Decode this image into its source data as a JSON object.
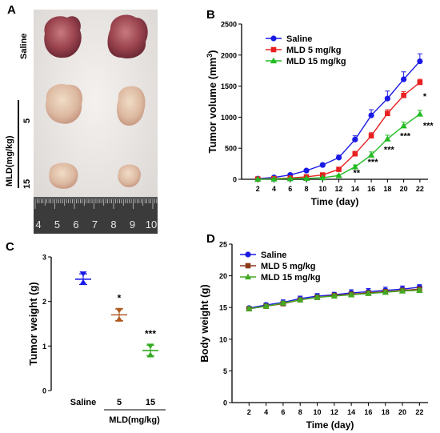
{
  "panels": {
    "A": {
      "letter": "A",
      "row_labels": {
        "saline": "Saline",
        "mld": "MLD(mg/kg)",
        "dose5": "5",
        "dose15": "15"
      },
      "ruler_numbers": [
        "4",
        "5",
        "6",
        "7",
        "8",
        "9",
        "10"
      ]
    },
    "B": {
      "letter": "B"
    },
    "C": {
      "letter": "C"
    },
    "D": {
      "letter": "D"
    }
  },
  "chart_data": [
    {
      "id": "B",
      "type": "line",
      "ylabel_main": "Tumor volume (mm",
      "ylabel_sup": "3",
      "ylabel_end": ")",
      "xlabel": "Time (day)",
      "x": [
        2,
        4,
        6,
        8,
        10,
        12,
        14,
        16,
        18,
        20,
        22
      ],
      "xlim": [
        0,
        23
      ],
      "ylim": [
        0,
        2500
      ],
      "yticks": [
        0,
        500,
        1000,
        1500,
        2000,
        2500
      ],
      "legend_position": "top-left",
      "series": [
        {
          "name": "Saline",
          "color": "#1a1ae6",
          "marker": "circle",
          "values": [
            10,
            30,
            70,
            140,
            230,
            350,
            640,
            1030,
            1300,
            1610,
            1900
          ],
          "errors": [
            5,
            10,
            15,
            20,
            25,
            40,
            60,
            90,
            120,
            120,
            120
          ]
        },
        {
          "name": "MLD 5 mg/kg",
          "color": "#e82020",
          "marker": "square",
          "values": [
            5,
            10,
            20,
            40,
            70,
            160,
            410,
            700,
            1060,
            1350,
            1560
          ],
          "errors": [
            3,
            5,
            8,
            10,
            15,
            25,
            40,
            50,
            60,
            60,
            50
          ]
        },
        {
          "name": "MLD 15 mg/kg",
          "color": "#22bb22",
          "marker": "triangle",
          "values": [
            3,
            5,
            10,
            15,
            25,
            60,
            200,
            390,
            650,
            860,
            1050
          ],
          "errors": [
            2,
            3,
            5,
            5,
            8,
            15,
            30,
            50,
            60,
            60,
            60
          ]
        }
      ],
      "annotations": [
        {
          "x": 14,
          "y": 60,
          "text": "**"
        },
        {
          "x": 16,
          "y": 230,
          "text": "***"
        },
        {
          "x": 18,
          "y": 430,
          "text": "***"
        },
        {
          "x": 20,
          "y": 650,
          "text": "***"
        },
        {
          "x": 22,
          "y": 1290,
          "text": "*"
        },
        {
          "x": 22,
          "y": 820,
          "text": "***"
        }
      ]
    },
    {
      "id": "C",
      "type": "scatter",
      "ylabel": "Tumor weight (g)",
      "categories": [
        "Saline",
        "5",
        "15"
      ],
      "category_group_label": "MLD(mg/kg)",
      "ylim": [
        0,
        3
      ],
      "yticks": [
        0,
        1,
        2,
        3
      ],
      "series": [
        {
          "category": "Saline",
          "color": "#1a1ae6",
          "points": [
            2.62,
            2.43
          ],
          "mean": 2.5,
          "error": 0.12
        },
        {
          "category": "5",
          "color": "#b05a20",
          "points": [
            1.8,
            1.6
          ],
          "mean": 1.7,
          "error": 0.13
        },
        {
          "category": "15",
          "color": "#33aa22",
          "points": [
            1.0,
            0.8
          ],
          "mean": 0.9,
          "error": 0.12
        }
      ],
      "annotations": [
        {
          "category": "5",
          "y": 2.0,
          "text": "*"
        },
        {
          "category": "15",
          "y": 1.2,
          "text": "***"
        }
      ]
    },
    {
      "id": "D",
      "type": "line",
      "ylabel": "Body weight (g)",
      "xlabel": "Time (day)",
      "x": [
        2,
        4,
        6,
        8,
        10,
        12,
        14,
        16,
        18,
        20,
        22
      ],
      "xlim": [
        0,
        23
      ],
      "ylim": [
        0,
        25
      ],
      "yticks": [
        0,
        5,
        10,
        15,
        20,
        25
      ],
      "legend_position": "top-left",
      "series": [
        {
          "name": "Saline",
          "color": "#1a1ae6",
          "marker": "circle",
          "values": [
            14.9,
            15.4,
            15.8,
            16.4,
            16.8,
            17.0,
            17.3,
            17.5,
            17.7,
            17.9,
            18.2
          ],
          "errors": [
            0.3,
            0.3,
            0.4,
            0.4,
            0.4,
            0.4,
            0.5,
            0.5,
            0.5,
            0.5,
            0.4
          ]
        },
        {
          "name": "MLD 5 mg/kg",
          "color": "#8b3a1a",
          "marker": "square",
          "values": [
            14.8,
            15.2,
            15.6,
            16.2,
            16.6,
            16.9,
            17.1,
            17.3,
            17.5,
            17.7,
            17.9
          ],
          "errors": [
            0.3,
            0.3,
            0.3,
            0.3,
            0.3,
            0.3,
            0.3,
            0.3,
            0.3,
            0.3,
            0.3
          ]
        },
        {
          "name": "MLD 15 mg/kg",
          "color": "#44aa22",
          "marker": "triangle",
          "values": [
            14.8,
            15.2,
            15.7,
            16.2,
            16.6,
            16.8,
            17.0,
            17.2,
            17.4,
            17.6,
            17.7
          ],
          "errors": [
            0.3,
            0.3,
            0.3,
            0.3,
            0.3,
            0.3,
            0.3,
            0.3,
            0.3,
            0.3,
            0.3
          ]
        }
      ]
    }
  ]
}
